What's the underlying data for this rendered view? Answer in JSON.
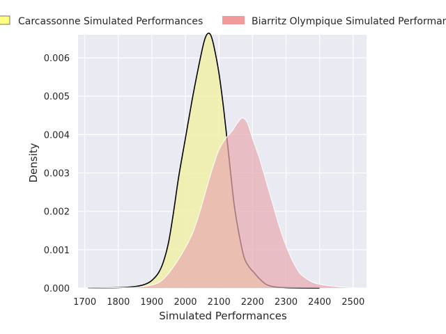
{
  "chart_data": {
    "type": "area",
    "title": "",
    "xlabel": "Simulated Performances",
    "ylabel": "Density",
    "xlim": [
      1680,
      2540
    ],
    "ylim": [
      0,
      0.0066
    ],
    "x_ticks": [
      1700,
      1800,
      1900,
      2000,
      2100,
      2200,
      2300,
      2400,
      2500
    ],
    "y_ticks": [
      0.0,
      0.001,
      0.002,
      0.003,
      0.004,
      0.005,
      0.006
    ],
    "y_tick_labels": [
      "0.000",
      "0.001",
      "0.002",
      "0.003",
      "0.004",
      "0.005",
      "0.006"
    ],
    "grid": true,
    "legend_position": "top",
    "series": [
      {
        "name": "Carcassonne Simulated Performances",
        "fill": "#f0f0a8",
        "legend_fill": "#ffff80",
        "stroke": "#000000",
        "points": [
          [
            1710,
            0.0
          ],
          [
            1800,
            1e-05
          ],
          [
            1850,
            4e-05
          ],
          [
            1880,
            0.0001
          ],
          [
            1900,
            0.0002
          ],
          [
            1920,
            0.0004
          ],
          [
            1935,
            0.0007
          ],
          [
            1950,
            0.0012
          ],
          [
            1965,
            0.002
          ],
          [
            1980,
            0.0029
          ],
          [
            2000,
            0.0039
          ],
          [
            2020,
            0.0049
          ],
          [
            2040,
            0.0058
          ],
          [
            2055,
            0.0064
          ],
          [
            2065,
            0.00662
          ],
          [
            2075,
            0.0066
          ],
          [
            2085,
            0.0063
          ],
          [
            2100,
            0.0056
          ],
          [
            2115,
            0.0046
          ],
          [
            2130,
            0.0034
          ],
          [
            2145,
            0.0022
          ],
          [
            2160,
            0.0014
          ],
          [
            2175,
            0.0008
          ],
          [
            2190,
            0.00055
          ],
          [
            2205,
            0.0004
          ],
          [
            2220,
            0.00025
          ],
          [
            2240,
            0.0001
          ],
          [
            2260,
            4e-05
          ],
          [
            2300,
            1e-05
          ],
          [
            2400,
            0.0
          ]
        ]
      },
      {
        "name": "Biarritz Olympique Simulated Performances",
        "fill": "#e8aab0",
        "legend_fill": "#f09a99",
        "stroke": "#ffffff",
        "points": [
          [
            1710,
            0.0
          ],
          [
            1800,
            1e-05
          ],
          [
            1850,
            2e-05
          ],
          [
            1900,
            8e-05
          ],
          [
            1930,
            0.0002
          ],
          [
            1960,
            0.0005
          ],
          [
            1990,
            0.0009
          ],
          [
            2020,
            0.0014
          ],
          [
            2040,
            0.0019
          ],
          [
            2060,
            0.0025
          ],
          [
            2080,
            0.0031
          ],
          [
            2100,
            0.0036
          ],
          [
            2120,
            0.0039
          ],
          [
            2140,
            0.0041
          ],
          [
            2155,
            0.0043
          ],
          [
            2170,
            0.00443
          ],
          [
            2185,
            0.0043
          ],
          [
            2200,
            0.0039
          ],
          [
            2220,
            0.0034
          ],
          [
            2240,
            0.0028
          ],
          [
            2260,
            0.0022
          ],
          [
            2280,
            0.0016
          ],
          [
            2300,
            0.0011
          ],
          [
            2320,
            0.0007
          ],
          [
            2340,
            0.0004
          ],
          [
            2360,
            0.00025
          ],
          [
            2380,
            0.00015
          ],
          [
            2400,
            0.0001
          ],
          [
            2430,
            6e-05
          ],
          [
            2460,
            3e-05
          ],
          [
            2500,
            1e-05
          ],
          [
            2510,
            0.0
          ]
        ]
      }
    ]
  }
}
